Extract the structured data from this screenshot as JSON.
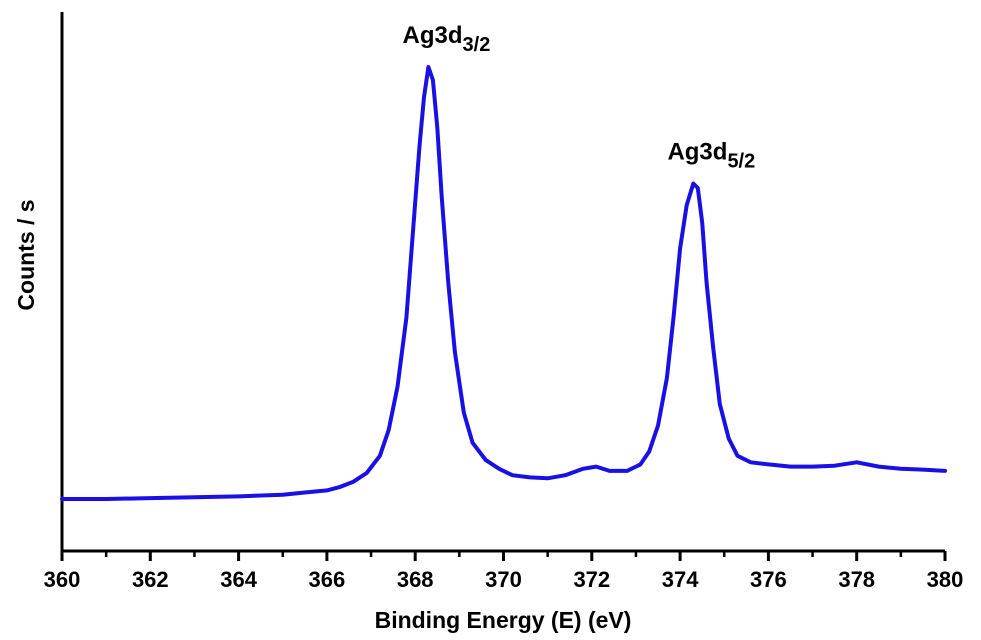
{
  "chart_data": {
    "type": "line",
    "title": "",
    "xlabel": "Binding Energy (E) (eV)",
    "ylabel": "Counts / s",
    "xlim": [
      360,
      380
    ],
    "ylim": [
      0,
      1.05
    ],
    "x_ticks": [
      "360",
      "362",
      "364",
      "366",
      "368",
      "370",
      "372",
      "374",
      "376",
      "378",
      "380"
    ],
    "y_ticks": [],
    "grid": false,
    "color": "#1a10e6",
    "annotations": [
      {
        "base": "Ag3d",
        "sub": "3/2",
        "x": 368.3,
        "y": 1.0
      },
      {
        "base": "Ag3d",
        "sub": "5/2",
        "x": 374.3,
        "y": 0.73
      }
    ],
    "series": [
      {
        "x": [
          360.0,
          361.0,
          362.0,
          363.0,
          364.0,
          365.0,
          365.5,
          366.0,
          366.3,
          366.6,
          366.9,
          367.2,
          367.4,
          367.6,
          367.8,
          367.95,
          368.1,
          368.2,
          368.3,
          368.4,
          368.5,
          368.6,
          368.75,
          368.9,
          369.1,
          369.3,
          369.6,
          369.9,
          370.2,
          370.6,
          371.0,
          371.4,
          371.8,
          372.1,
          372.4,
          372.8,
          373.1,
          373.3,
          373.5,
          373.7,
          373.85,
          374.0,
          374.15,
          374.3,
          374.4,
          374.5,
          374.6,
          374.75,
          374.9,
          375.1,
          375.3,
          375.6,
          376.0,
          376.5,
          377.0,
          377.5,
          378.0,
          378.5,
          379.0,
          379.5,
          380.0
        ],
        "y": [
          0.0,
          0.0,
          0.002,
          0.004,
          0.006,
          0.01,
          0.015,
          0.02,
          0.028,
          0.04,
          0.06,
          0.1,
          0.16,
          0.26,
          0.42,
          0.62,
          0.82,
          0.93,
          1.0,
          0.97,
          0.86,
          0.7,
          0.5,
          0.34,
          0.2,
          0.13,
          0.09,
          0.07,
          0.055,
          0.05,
          0.048,
          0.055,
          0.07,
          0.075,
          0.065,
          0.065,
          0.08,
          0.11,
          0.17,
          0.28,
          0.42,
          0.58,
          0.68,
          0.73,
          0.72,
          0.64,
          0.5,
          0.35,
          0.22,
          0.14,
          0.1,
          0.085,
          0.08,
          0.075,
          0.075,
          0.077,
          0.085,
          0.075,
          0.07,
          0.068,
          0.065
        ]
      }
    ]
  }
}
